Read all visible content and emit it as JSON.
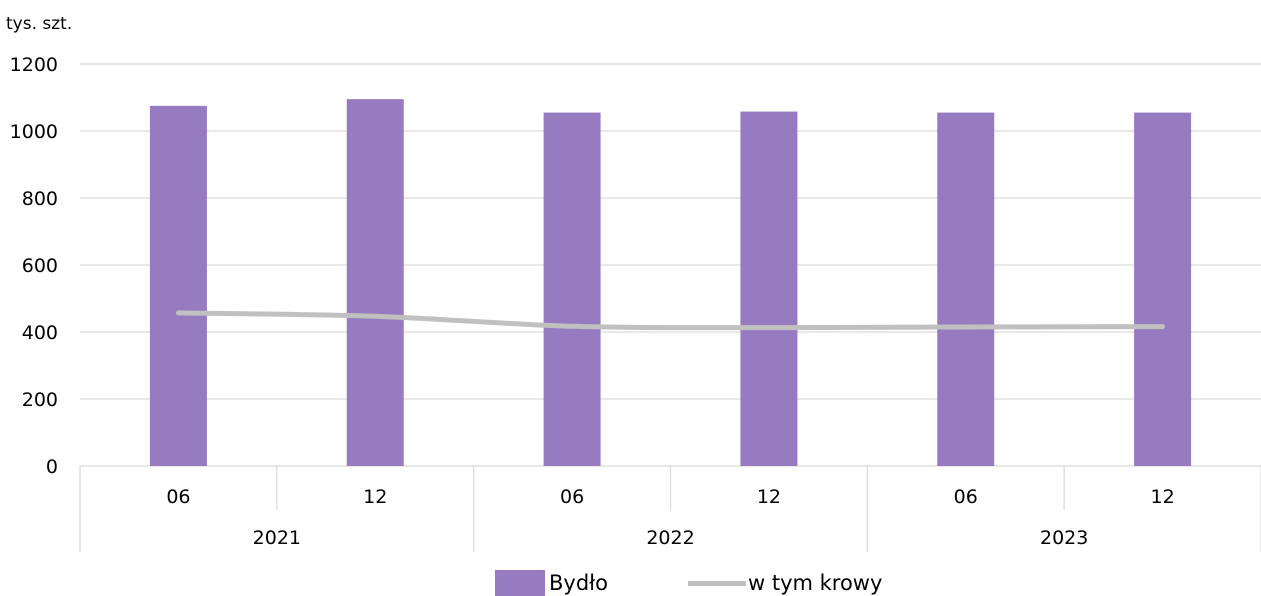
{
  "chart_data": {
    "type": "bar",
    "title": "",
    "ylabel": "tys. szt.",
    "xlabel": "",
    "ylim": [
      0,
      1200
    ],
    "yticks": [
      0,
      200,
      400,
      600,
      800,
      1000,
      1200
    ],
    "grid": true,
    "legend_position": "bottom",
    "categories": [
      "06",
      "12",
      "06",
      "12",
      "06",
      "12"
    ],
    "groups": [
      {
        "label": "2021",
        "span": 2
      },
      {
        "label": "2022",
        "span": 2
      },
      {
        "label": "2023",
        "span": 2
      }
    ],
    "series": [
      {
        "name": "Bydło",
        "type": "bar",
        "color": "#967BC1",
        "values": [
          1075,
          1095,
          1055,
          1058,
          1055,
          1055
        ]
      },
      {
        "name": "w tym krowy",
        "type": "line",
        "color": "#C0C0C0",
        "values": [
          457,
          447,
          417,
          413,
          415,
          416
        ]
      }
    ]
  }
}
